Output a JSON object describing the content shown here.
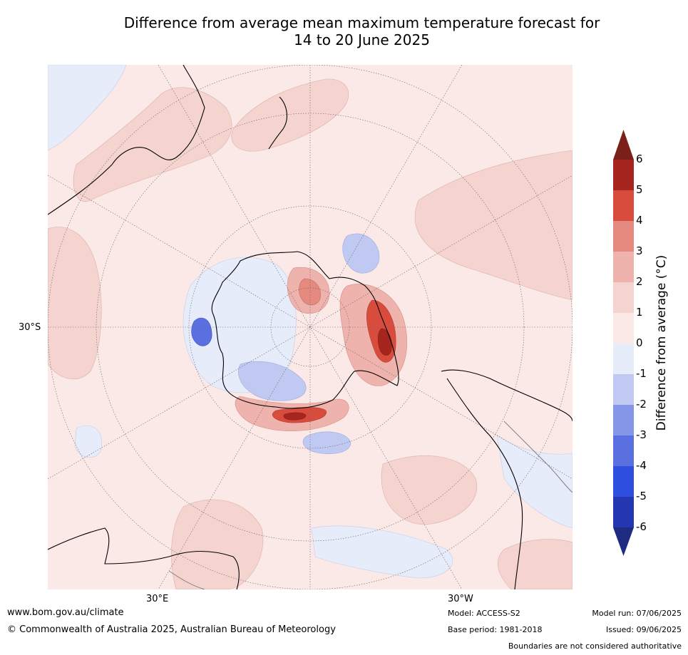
{
  "title": {
    "line1": "Difference from average mean maximum temperature forecast for",
    "line2": "14 to 20 June 2025"
  },
  "map": {
    "projection": "south-polar stereographic",
    "graticule": {
      "lat_label": "30°S",
      "lon_labels": [
        "30°E",
        "30°W"
      ]
    },
    "colors": {
      "background": "#fbe9e7",
      "coast": "#000000",
      "border": "#808080"
    }
  },
  "colorbar": {
    "label": "Difference from average (°C)",
    "ticks": [
      "6",
      "5",
      "4",
      "3",
      "2",
      "1",
      "0",
      "-1",
      "-2",
      "-3",
      "-4",
      "-5",
      "-6"
    ],
    "levels": [
      {
        "range": ">6",
        "color": "#7a1f1a"
      },
      {
        "range": "5 to 6",
        "color": "#a7251f"
      },
      {
        "range": "4 to 5",
        "color": "#d84c3e"
      },
      {
        "range": "3 to 4",
        "color": "#e68a80"
      },
      {
        "range": "2 to 3",
        "color": "#efb3ad"
      },
      {
        "range": "1 to 2",
        "color": "#f5d4d0"
      },
      {
        "range": "0 to 1",
        "color": "#fbe9e7"
      },
      {
        "range": "-1 to 0",
        "color": "#e7ecfb"
      },
      {
        "range": "-2 to -1",
        "color": "#c0c9f2"
      },
      {
        "range": "-3 to -2",
        "color": "#8595e8"
      },
      {
        "range": "-4 to -3",
        "color": "#5a6fe0"
      },
      {
        "range": "-5 to -4",
        "color": "#2f4fe0"
      },
      {
        "range": "-6 to -5",
        "color": "#2537b0"
      },
      {
        "range": "<-6",
        "color": "#1f2b80"
      }
    ]
  },
  "footer": {
    "website": "www.bom.gov.au/climate",
    "copyright": "© Commonwealth of Australia 2025, Australian Bureau of Meteorology",
    "model": "Model: ACCESS-S2",
    "base_period": "Base period: 1981-2018",
    "model_run": "Model run: 07/06/2025",
    "issued": "Issued: 09/06/2025",
    "disclaimer": "Boundaries are not considered authoritative"
  }
}
